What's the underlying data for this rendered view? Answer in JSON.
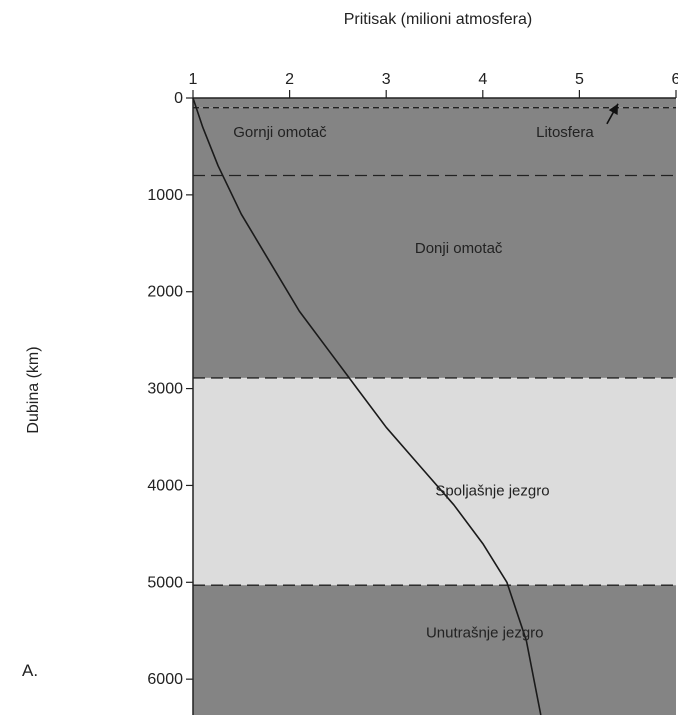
{
  "chart_data": {
    "type": "line",
    "title": "",
    "xlabel": "Pritisak (milioni atmosfera)",
    "ylabel": "Dubina (km)",
    "x_ticks": [
      1,
      2,
      3,
      4,
      5,
      6
    ],
    "x_tick_labels": [
      "1",
      "2",
      "3",
      "4",
      "5",
      "6"
    ],
    "y_ticks": [
      0,
      1000,
      2000,
      3000,
      4000,
      5000,
      6000
    ],
    "y_tick_labels": [
      "0",
      "1000",
      "2000",
      "3000",
      "4000",
      "5000",
      "6000"
    ],
    "xlim": [
      1,
      6
    ],
    "ylim": [
      0,
      6370
    ],
    "y_inverted": true,
    "x_axis_position": "top",
    "panel_label": "A.",
    "series": [
      {
        "x": [
          1.0,
          1.1,
          1.26,
          1.5,
          1.8,
          2.1,
          2.4,
          2.7,
          3.0,
          3.35,
          3.7,
          4.0,
          4.25,
          4.45,
          4.6
        ],
        "y": [
          0,
          300,
          700,
          1200,
          1700,
          2200,
          2600,
          3000,
          3400,
          3800,
          4200,
          4600,
          5000,
          5600,
          6370
        ]
      }
    ],
    "layers": [
      {
        "name": "Litosfera",
        "top": 0,
        "bottom": 100,
        "color": "#848484"
      },
      {
        "name": "Gornji omotač",
        "top": 100,
        "bottom": 800,
        "color": "#848484"
      },
      {
        "name": "Donji omotač",
        "top": 800,
        "bottom": 2890,
        "color": "#848484"
      },
      {
        "name": "Spoljašnje jezgro",
        "top": 2890,
        "bottom": 5030,
        "color": "#dcdcdc"
      },
      {
        "name": "Unutrašnje jezgro",
        "top": 5030,
        "bottom": 6370,
        "color": "#848484"
      }
    ],
    "boundaries": [
      100,
      800,
      2890,
      5030
    ],
    "annotations": [
      {
        "text": "Gornji omotač",
        "x": 1.9,
        "y": 350
      },
      {
        "text": "Litosfera",
        "x": 4.85,
        "y": 350,
        "arrow_to": [
          5.4,
          60
        ]
      },
      {
        "text": "Donji omotač",
        "x": 3.75,
        "y": 1550
      },
      {
        "text": "Spoljašnje jezgro",
        "x": 4.1,
        "y": 4050
      },
      {
        "text": "Unutrašnje jezgro",
        "x": 4.02,
        "y": 5520
      }
    ],
    "grid": false,
    "legend": "none"
  }
}
